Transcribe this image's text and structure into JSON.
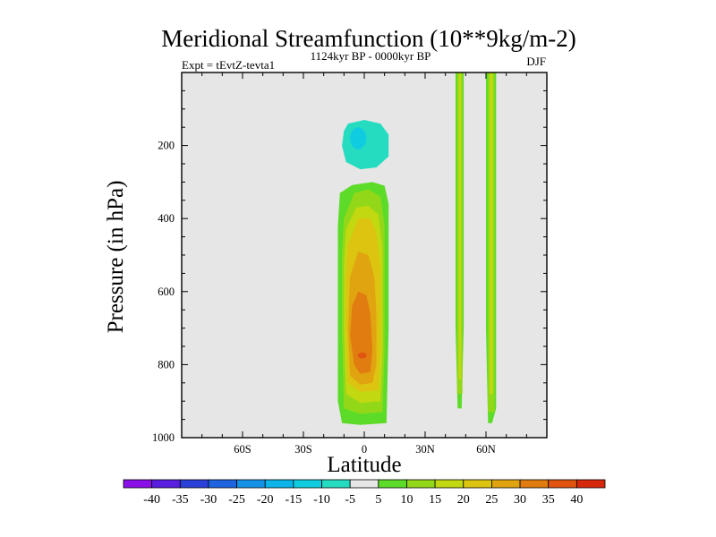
{
  "chart_data": {
    "type": "contour",
    "title": "Meridional Streamfunction (10**9kg/m-2)",
    "left_string": "Expt = tEvtZ-tevta1",
    "center_string": "1124kyr BP - 0000kyr BP",
    "right_string": "DJF",
    "xlabel": "Latitude",
    "ylabel": "Pressure (in hPa)",
    "xlim": [
      -90,
      90
    ],
    "ylim": [
      0,
      1000
    ],
    "y_inverted": true,
    "x_ticks": [
      {
        "value": -60,
        "label": "60S"
      },
      {
        "value": -30,
        "label": "30S"
      },
      {
        "value": 0,
        "label": "0"
      },
      {
        "value": 30,
        "label": "30N"
      },
      {
        "value": 60,
        "label": "60N"
      }
    ],
    "y_ticks": [
      {
        "value": 200,
        "label": "200"
      },
      {
        "value": 400,
        "label": "400"
      },
      {
        "value": 600,
        "label": "600"
      },
      {
        "value": 800,
        "label": "800"
      },
      {
        "value": 1000,
        "label": "1000"
      }
    ],
    "colorbar": {
      "levels": [
        -40,
        -35,
        -30,
        -25,
        -20,
        -15,
        -10,
        -5,
        5,
        10,
        15,
        20,
        25,
        30,
        35,
        40
      ],
      "labels": [
        "-40",
        "-35",
        "-30",
        "-25",
        "-20",
        "-15",
        "-10",
        "-5",
        "5",
        "10",
        "15",
        "20",
        "25",
        "30",
        "35",
        "40"
      ],
      "colors": [
        "#8b0fe8",
        "#5a1ee0",
        "#2a40d8",
        "#1e64e0",
        "#1492e8",
        "#0cb4ea",
        "#10cce0",
        "#26dcc0",
        "#e6e6e6",
        "#5cdc28",
        "#92d818",
        "#c2d810",
        "#dcc410",
        "#e0a410",
        "#e07c10",
        "#e05410",
        "#d8280c"
      ]
    },
    "features": [
      {
        "name": "positive-cell-equatorial",
        "description": "positive overturning cell between about 12S and 10N, 310-960 hPa",
        "peak_value": 35,
        "peak_lat": -1,
        "peak_p": 775
      },
      {
        "name": "negative-cell-upper",
        "description": "negative cell centred near 3S, 180 hPa",
        "peak_value": -15,
        "peak_lat": -3,
        "peak_p": 180
      },
      {
        "name": "positive-band-45n",
        "description": "narrow positive band near 45-48N spanning full depth",
        "peak_value": 10
      },
      {
        "name": "positive-band-62n",
        "description": "narrow positive band near 61-65N spanning full depth",
        "peak_value": 10
      }
    ]
  }
}
